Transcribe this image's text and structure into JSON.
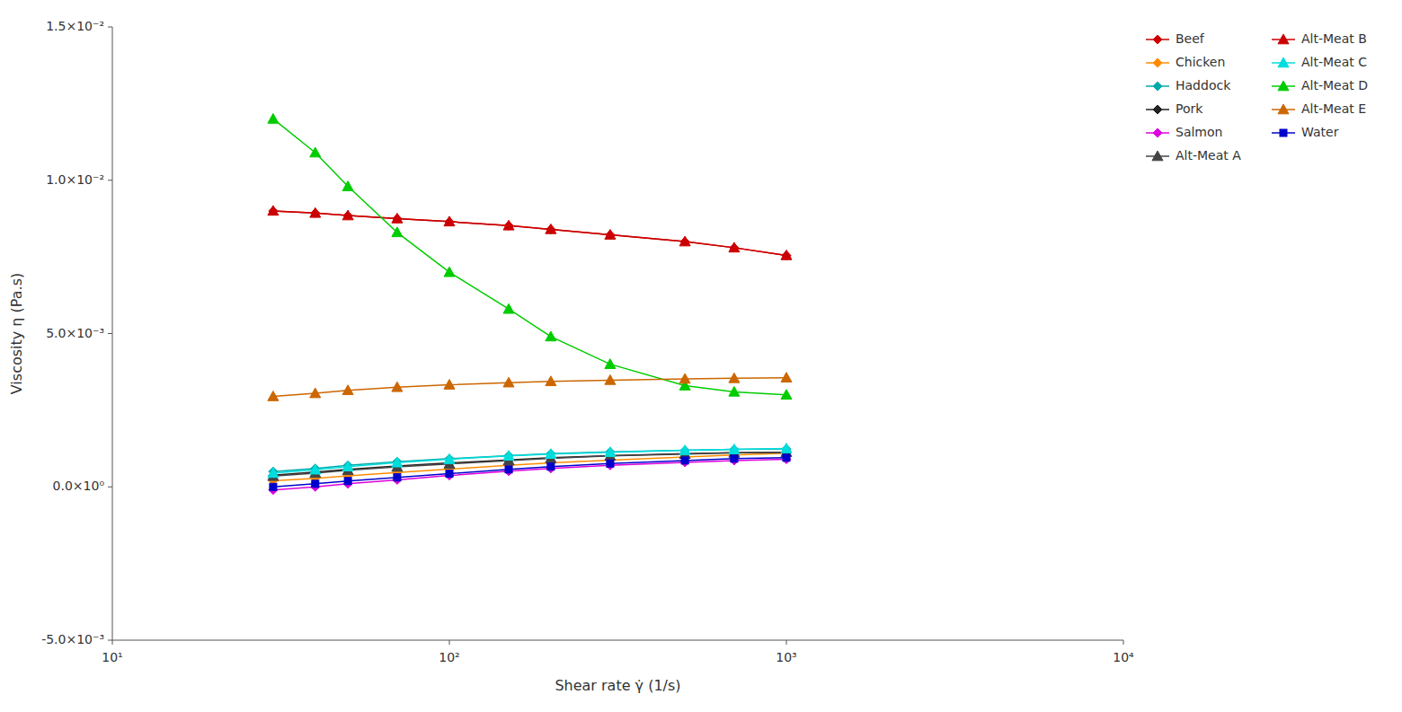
{
  "chart_data": {
    "type": "line",
    "x_label": "Shear rate γ̇ (1/s)",
    "y_label": "Viscosity η (Pa.s)",
    "log": "x",
    "legend": "right",
    "grid": false,
    "xlim": [
      10,
      10000
    ],
    "xticks": [
      {
        "value": 10,
        "label": "10¹"
      },
      {
        "value": 100,
        "label": "10²"
      },
      {
        "value": 1000,
        "label": "10³"
      },
      {
        "value": 10000,
        "label": "10⁴"
      }
    ],
    "ylim": [
      -0.005,
      0.015
    ],
    "yticks": [
      {
        "value": -0.005,
        "label": "-5.0×10⁻³"
      },
      {
        "value": 0.0,
        "label": "0.0×10⁰"
      },
      {
        "value": 0.005,
        "label": "5.0×10⁻³"
      },
      {
        "value": 0.01,
        "label": "1.0×10⁻²"
      },
      {
        "value": 0.015,
        "label": "1.5×10⁻²"
      }
    ],
    "x": [
      30,
      40,
      50,
      70,
      100,
      150,
      200,
      300,
      500,
      700,
      1000
    ],
    "series": [
      {
        "name": "Beef",
        "color": "#cc0000",
        "marker": "diamond",
        "values": [
          0.009,
          0.00893,
          0.00885,
          0.00875,
          0.00865,
          0.00852,
          0.0084,
          0.00822,
          0.008,
          0.0078,
          0.00755
        ]
      },
      {
        "name": "Chicken",
        "color": "#ff8c00",
        "marker": "diamond",
        "values": [
          0.0002,
          0.00028,
          0.00036,
          0.00047,
          0.00058,
          0.0007,
          0.00078,
          0.00087,
          0.00097,
          0.00104,
          0.0011
        ]
      },
      {
        "name": "Haddock",
        "color": "#00aaaa",
        "marker": "diamond",
        "values": [
          0.0005,
          0.0006,
          0.0007,
          0.00082,
          0.00092,
          0.00102,
          0.00108,
          0.00114,
          0.00119,
          0.00122,
          0.00124
        ]
      },
      {
        "name": "Pork",
        "color": "#222222",
        "marker": "diamond",
        "values": [
          0.00038,
          0.00048,
          0.00057,
          0.00068,
          0.00078,
          0.00088,
          0.00095,
          0.00102,
          0.00108,
          0.00111,
          0.00113
        ]
      },
      {
        "name": "Salmon",
        "color": "#dd00dd",
        "marker": "diamond",
        "values": [
          -0.0001,
          0.0,
          0.0001,
          0.00023,
          0.00037,
          0.00051,
          0.0006,
          0.0007,
          0.0008,
          0.00086,
          0.0009
        ]
      },
      {
        "name": "Alt-Meat A",
        "color": "#444444",
        "marker": "triangle",
        "values": [
          0.00035,
          0.00045,
          0.00054,
          0.00065,
          0.00075,
          0.00086,
          0.00093,
          0.00101,
          0.00107,
          0.00111,
          0.00113
        ]
      },
      {
        "name": "Alt-Meat B",
        "color": "#cc0000",
        "marker": "triangle",
        "values": [
          0.009,
          0.00893,
          0.00885,
          0.00875,
          0.00865,
          0.00852,
          0.0084,
          0.00822,
          0.008,
          0.0078,
          0.00755
        ]
      },
      {
        "name": "Alt-Meat C",
        "color": "#00dddd",
        "marker": "triangle",
        "values": [
          0.00045,
          0.00056,
          0.00066,
          0.00079,
          0.0009,
          0.00101,
          0.00107,
          0.00113,
          0.00119,
          0.00122,
          0.00125
        ]
      },
      {
        "name": "Alt-Meat D",
        "color": "#00cc00",
        "marker": "triangle",
        "values": [
          0.012,
          0.0109,
          0.0098,
          0.0083,
          0.007,
          0.0058,
          0.0049,
          0.004,
          0.0033,
          0.0031,
          0.003
        ]
      },
      {
        "name": "Alt-Meat E",
        "color": "#cc6600",
        "marker": "triangle",
        "values": [
          0.00295,
          0.00305,
          0.00315,
          0.00325,
          0.00333,
          0.0034,
          0.00344,
          0.00348,
          0.00352,
          0.00354,
          0.00356
        ]
      },
      {
        "name": "Water",
        "color": "#0000cc",
        "marker": "square",
        "values": [
          0.0,
          0.0001,
          0.00019,
          0.00031,
          0.00043,
          0.00057,
          0.00066,
          0.00076,
          0.00086,
          0.00092,
          0.00095
        ]
      }
    ]
  }
}
